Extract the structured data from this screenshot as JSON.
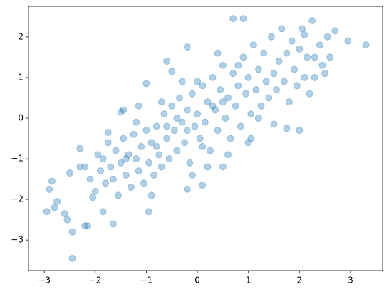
{
  "chart_data": {
    "type": "scatter",
    "color": "#1f77b4",
    "alpha": 0.35,
    "xlim": [
      -3.31,
      3.63
    ],
    "ylim": [
      -3.75,
      2.75
    ],
    "xticks": [
      {
        "value": -3,
        "label": "−3"
      },
      {
        "value": -2,
        "label": "−2"
      },
      {
        "value": -1,
        "label": "−1"
      },
      0,
      1,
      2,
      3
    ],
    "yticks": [
      {
        "value": -3,
        "label": "−3"
      },
      {
        "value": -2,
        "label": "−2"
      },
      {
        "value": -1,
        "label": "−1"
      },
      0,
      1,
      2
    ],
    "x": [
      -2.95,
      -2.9,
      -2.85,
      -2.8,
      -2.75,
      -2.6,
      -2.55,
      -2.45,
      -2.45,
      -2.5,
      -2.3,
      -2.2,
      -2.15,
      -2.05,
      -1.85,
      -1.65,
      -0.95,
      -0.2,
      0.1,
      0.7,
      0.9,
      1.75,
      2.0,
      2.25,
      3.3,
      2.95,
      2.7,
      2.6,
      2.5,
      2.3,
      -1.0,
      -1.5,
      -1.45,
      -1.15,
      -0.6,
      -0.2,
      -0.5,
      -1.75,
      -2.3,
      0.5,
      1.5,
      1.05,
      2.1,
      2.3,
      -2.2,
      -2.1,
      -2.0,
      -1.95,
      -1.9,
      -1.85,
      -1.8,
      -1.75,
      -1.7,
      -1.65,
      -1.6,
      -1.55,
      -1.5,
      -1.45,
      -1.4,
      -1.35,
      -1.3,
      -1.25,
      -1.2,
      -1.15,
      -1.1,
      -1.05,
      -1.0,
      -0.95,
      -0.9,
      -0.85,
      -0.8,
      -0.75,
      -0.7,
      -0.65,
      -0.6,
      -0.55,
      -0.5,
      -0.45,
      -0.4,
      -0.35,
      -0.3,
      -0.25,
      -0.2,
      -0.15,
      -0.1,
      -0.05,
      0.0,
      0.05,
      0.1,
      0.15,
      0.2,
      0.25,
      0.3,
      0.35,
      0.4,
      0.45,
      0.5,
      0.55,
      0.6,
      0.65,
      0.7,
      0.75,
      0.8,
      0.85,
      0.9,
      0.95,
      1.0,
      1.05,
      1.1,
      1.15,
      1.2,
      1.25,
      1.3,
      1.35,
      1.4,
      1.45,
      1.5,
      1.55,
      1.6,
      1.65,
      1.7,
      1.75,
      1.8,
      1.85,
      1.9,
      1.95,
      2.0,
      2.05,
      2.1,
      2.15,
      2.2,
      2.4,
      2.45,
      2.55,
      -0.3,
      0.2,
      -0.7,
      0.6,
      -1.2,
      1.0,
      -0.1,
      0.4,
      -0.9,
      0.0,
      0.1,
      -0.4,
      0.3,
      -0.2,
      0.5,
      -0.6,
      0.8,
      -0.8,
      1.2,
      -1.4
    ],
    "values": [
      -2.3,
      -1.75,
      -1.55,
      -2.2,
      -2.05,
      -2.35,
      -2.5,
      -2.8,
      -3.45,
      -1.35,
      -0.75,
      -2.65,
      -2.65,
      -1.95,
      -2.3,
      -2.6,
      -2.3,
      -1.75,
      -1.65,
      2.45,
      2.45,
      -0.25,
      -0.3,
      2.4,
      1.8,
      1.9,
      2.15,
      1.5,
      1.1,
      1.0,
      0.85,
      0.15,
      0.2,
      0.3,
      1.4,
      1.75,
      1.15,
      -0.35,
      -1.2,
      -1.2,
      -0.15,
      -0.5,
      2.05,
      1.5,
      -1.2,
      -1.5,
      -1.8,
      -0.9,
      -1.3,
      -1.0,
      -1.6,
      -0.6,
      -1.2,
      -1.5,
      -0.8,
      -1.9,
      -1.1,
      -0.5,
      -1.4,
      -0.9,
      -1.7,
      -0.4,
      -1.0,
      -1.3,
      -0.7,
      -1.6,
      -0.3,
      -1.1,
      -0.6,
      -1.4,
      -0.2,
      -0.9,
      -1.2,
      0.1,
      -0.5,
      -1.0,
      0.3,
      -0.3,
      -0.8,
      0.5,
      -0.1,
      -0.6,
      0.2,
      -1.1,
      0.6,
      -0.2,
      0.1,
      -0.5,
      0.8,
      -0.1,
      0.4,
      -0.8,
      1.0,
      0.2,
      -0.3,
      0.7,
      1.3,
      0.0,
      0.5,
      -0.5,
      1.1,
      0.3,
      0.8,
      -0.2,
      1.5,
      0.6,
      1.0,
      0.1,
      1.8,
      0.7,
      1.2,
      0.3,
      1.6,
      0.9,
      0.5,
      2.0,
      1.1,
      0.7,
      1.4,
      2.2,
      0.9,
      1.6,
      0.4,
      1.9,
      1.2,
      0.8,
      1.7,
      2.2,
      1.0,
      1.5,
      0.6,
      1.8,
      1.3,
      2.0,
      0.9,
      -1.2,
      0.4,
      -0.9,
      -0.1,
      -0.6,
      -1.4,
      1.6,
      -1.9,
      0.9,
      -0.7,
      0.0,
      0.3,
      -0.3,
      0.4,
      -0.2,
      1.3,
      -0.7,
      0.0,
      -1.0
    ]
  }
}
